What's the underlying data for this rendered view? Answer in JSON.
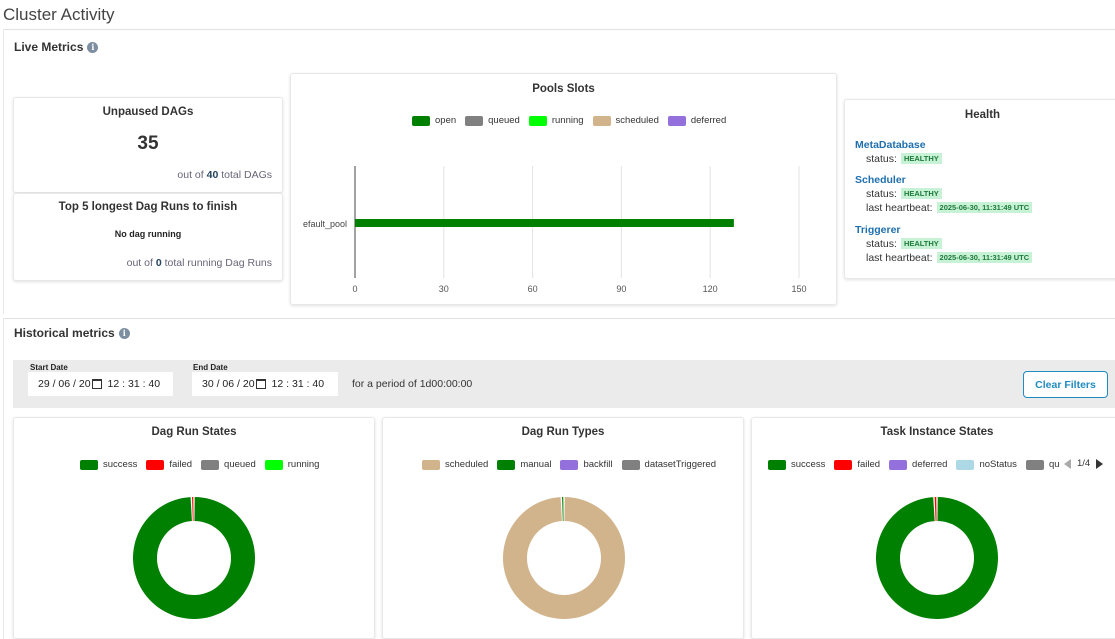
{
  "page": {
    "title": "Cluster Activity"
  },
  "live": {
    "label": "Live Metrics",
    "unpaused": {
      "title": "Unpaused DAGs",
      "value": "35",
      "prefix": "out of",
      "total": "40",
      "suffix": "total DAGs"
    },
    "longest": {
      "title": "Top 5 longest Dag Runs to finish",
      "empty": "No dag running",
      "prefix": "out of",
      "total": "0",
      "suffix": "total running Dag Runs"
    },
    "pools": {
      "title": "Pools Slots",
      "legend": [
        {
          "label": "open",
          "color": "#008000"
        },
        {
          "label": "queued",
          "color": "#808080"
        },
        {
          "label": "running",
          "color": "#00ff00"
        },
        {
          "label": "scheduled",
          "color": "#d2b48c"
        },
        {
          "label": "deferred",
          "color": "#9370db"
        }
      ],
      "category_label": "efault_pool",
      "ticks": [
        "0",
        "30",
        "60",
        "90",
        "120",
        "150"
      ]
    },
    "health": {
      "title": "Health",
      "metadatabase": {
        "name": "MetaDatabase",
        "status_label": "status:",
        "status": "HEALTHY"
      },
      "scheduler": {
        "name": "Scheduler",
        "status_label": "status:",
        "status": "HEALTHY",
        "hb_label": "last heartbeat:",
        "hb": "2025-06-30, 11:31:49 UTC"
      },
      "triggerer": {
        "name": "Triggerer",
        "status_label": "status:",
        "status": "HEALTHY",
        "hb_label": "last heartbeat:",
        "hb": "2025-06-30, 11:31:49 UTC"
      }
    }
  },
  "historical": {
    "label": "Historical metrics",
    "filters": {
      "start_label": "Start Date",
      "start_date": "29 / 06 / 20",
      "start_time": "12 : 31 : 40",
      "end_label": "End Date",
      "end_date": "30 / 06 / 20",
      "end_time": "12 : 31 : 40",
      "period": "for a period of 1d00:00:00",
      "clear": "Clear Filters"
    },
    "dag_run_states": {
      "title": "Dag Run States",
      "legend": [
        {
          "label": "success",
          "color": "#008000"
        },
        {
          "label": "failed",
          "color": "#ff0000"
        },
        {
          "label": "queued",
          "color": "#808080"
        },
        {
          "label": "running",
          "color": "#00ff00"
        }
      ]
    },
    "dag_run_types": {
      "title": "Dag Run Types",
      "legend": [
        {
          "label": "scheduled",
          "color": "#d2b48c"
        },
        {
          "label": "manual",
          "color": "#008000"
        },
        {
          "label": "backfill",
          "color": "#9370db"
        },
        {
          "label": "datasetTriggered",
          "color": "#808080"
        }
      ]
    },
    "task_instance_states": {
      "title": "Task Instance States",
      "legend": [
        {
          "label": "success",
          "color": "#008000"
        },
        {
          "label": "failed",
          "color": "#ff0000"
        },
        {
          "label": "deferred",
          "color": "#9370db"
        },
        {
          "label": "noStatus",
          "color": "#add8e6"
        },
        {
          "label": "queue",
          "color": "#808080"
        }
      ],
      "pager": "1/4"
    }
  },
  "chart_data": [
    {
      "type": "bar",
      "orientation": "horizontal",
      "title": "Pools Slots",
      "categories": [
        "efault_pool"
      ],
      "series": [
        {
          "name": "open",
          "values": [
            128
          ]
        },
        {
          "name": "queued",
          "values": [
            0
          ]
        },
        {
          "name": "running",
          "values": [
            0
          ]
        },
        {
          "name": "scheduled",
          "values": [
            0
          ]
        },
        {
          "name": "deferred",
          "values": [
            0
          ]
        }
      ],
      "xlim": [
        0,
        150
      ],
      "ticks": [
        0,
        30,
        60,
        90,
        120,
        150
      ],
      "grid": true,
      "legend": "top"
    },
    {
      "type": "pie",
      "variant": "donut",
      "title": "Dag Run States",
      "slices": [
        {
          "label": "success",
          "value": 99.3,
          "color": "#008000"
        },
        {
          "label": "failed",
          "value": 0.7,
          "color": "#ff0000"
        }
      ],
      "legend": "top"
    },
    {
      "type": "pie",
      "variant": "donut",
      "title": "Dag Run Types",
      "slices": [
        {
          "label": "scheduled",
          "value": 99.3,
          "color": "#d2b48c"
        },
        {
          "label": "manual",
          "value": 0.7,
          "color": "#008000"
        }
      ],
      "legend": "top"
    },
    {
      "type": "pie",
      "variant": "donut",
      "title": "Task Instance States",
      "slices": [
        {
          "label": "success",
          "value": 99.2,
          "color": "#008000"
        },
        {
          "label": "failed",
          "value": 0.8,
          "color": "#ff0000"
        }
      ],
      "legend": "top"
    }
  ]
}
